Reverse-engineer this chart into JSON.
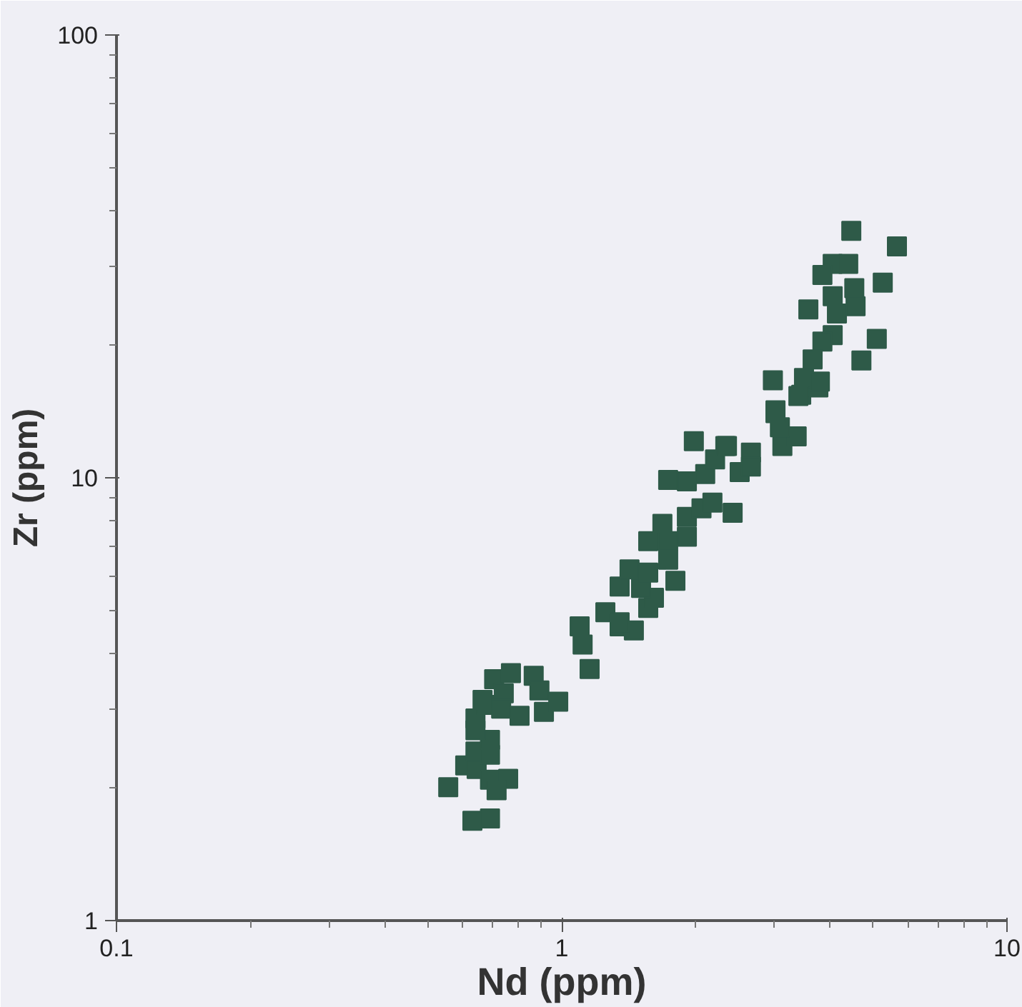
{
  "chart_data": {
    "type": "scatter",
    "xlabel": "Nd (ppm)",
    "ylabel": "Zr (ppm)",
    "log": "xy",
    "grid": false,
    "marker": "square",
    "color": "#2e5a48",
    "xlim": [
      0.1,
      10
    ],
    "ylim": [
      1,
      100
    ],
    "xticks": [
      0.1,
      1,
      10
    ],
    "yticks": [
      1,
      10,
      100
    ],
    "x": [
      0.556,
      0.63,
      0.69,
      0.607,
      0.644,
      0.69,
      0.758,
      0.714,
      0.64,
      0.69,
      0.69,
      0.64,
      0.64,
      0.678,
      0.664,
      0.705,
      0.769,
      0.741,
      0.731,
      0.865,
      0.891,
      0.804,
      0.912,
      0.982,
      1.155,
      1.097,
      1.114,
      1.253,
      1.349,
      1.452,
      1.564,
      1.611,
      1.349,
      1.349,
      1.507,
      1.8,
      1.42,
      1.564,
      1.734,
      1.564,
      1.734,
      1.91,
      1.683,
      1.91,
      2.06,
      2.18,
      2.42,
      1.734,
      1.91,
      2.1,
      2.21,
      2.33,
      1.98,
      2.51,
      2.66,
      2.66,
      3.13,
      3.37,
      3.09,
      3.02,
      3.45,
      3.77,
      4.47,
      5.66,
      4.06,
      4.4,
      3.85,
      4.54,
      5.26,
      4.06,
      4.57,
      3.58,
      4.15,
      4.06,
      3.85,
      5.1,
      3.66,
      4.71,
      2.98,
      3.5,
      3.8,
      3.4,
      3.02,
      2.35
    ],
    "values": [
      2.0,
      1.68,
      1.7,
      2.24,
      2.2,
      2.08,
      2.09,
      1.97,
      2.41,
      2.37,
      2.56,
      2.69,
      2.86,
      3.07,
      3.15,
      3.51,
      3.62,
      3.26,
      3.01,
      3.57,
      3.31,
      2.9,
      2.96,
      3.12,
      3.7,
      4.62,
      4.2,
      4.97,
      4.62,
      4.52,
      5.08,
      5.36,
      4.72,
      5.68,
      5.64,
      5.85,
      6.21,
      6.11,
      6.53,
      7.19,
      7.19,
      7.36,
      7.87,
      8.16,
      8.53,
      8.79,
      8.34,
      9.89,
      9.82,
      10.2,
      11.0,
      11.8,
      12.1,
      10.3,
      11.4,
      10.6,
      11.8,
      12.4,
      13.0,
      14.2,
      15.4,
      16.0,
      36.1,
      33.3,
      30.4,
      30.4,
      28.7,
      26.8,
      27.6,
      25.7,
      24.4,
      24.0,
      23.5,
      21.0,
      20.3,
      20.6,
      18.5,
      18.4,
      16.6,
      16.8,
      16.5,
      15.3,
      14.0,
      11.8
    ]
  }
}
